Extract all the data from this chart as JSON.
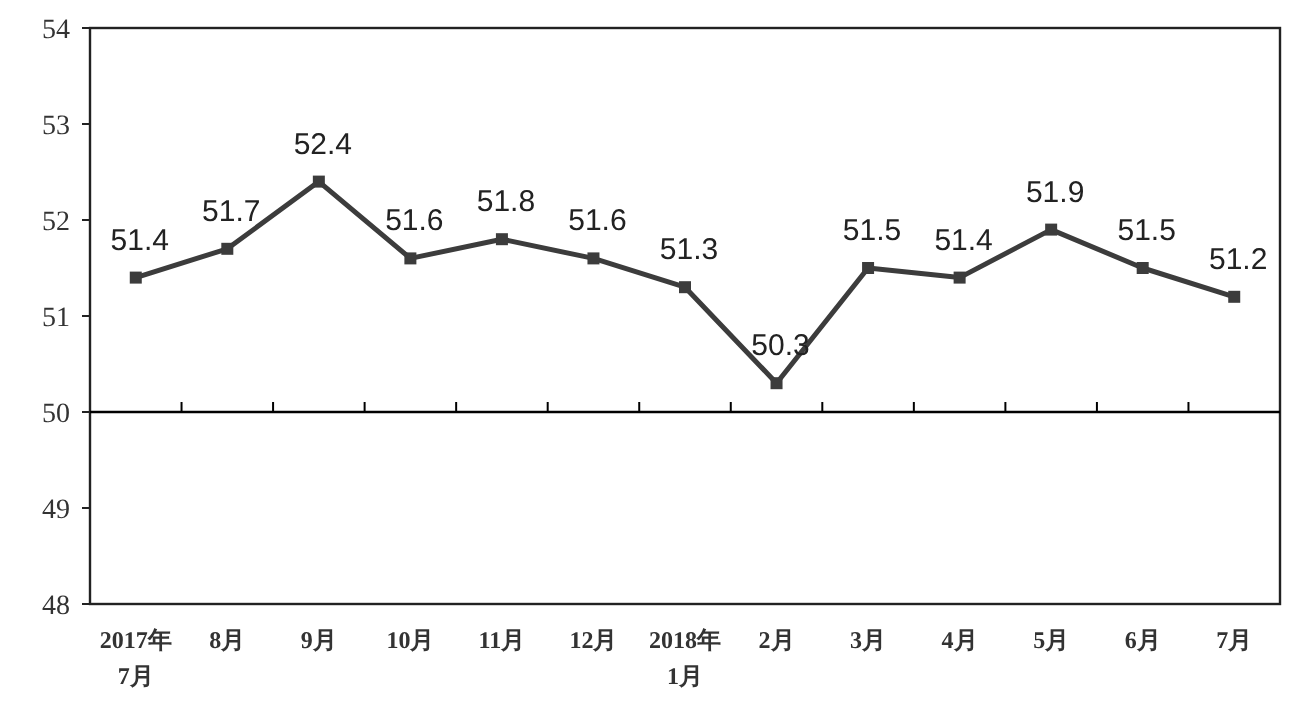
{
  "chart_data": {
    "type": "line",
    "categories": [
      "2017年\n7月",
      "8月",
      "9月",
      "10月",
      "11月",
      "12月",
      "2018年\n1月",
      "2月",
      "3月",
      "4月",
      "5月",
      "6月",
      "7月"
    ],
    "series": [
      {
        "color": "#3c3c3c",
        "values": [
          51.4,
          51.7,
          52.4,
          51.6,
          51.8,
          51.6,
          51.3,
          50.3,
          51.5,
          51.4,
          51.9,
          51.5,
          51.2
        ]
      }
    ],
    "ylim": [
      48,
      54
    ],
    "yticks": [
      48,
      49,
      50,
      51,
      52,
      53,
      54
    ],
    "ref_lines": [
      {
        "axis": "y",
        "value": 50,
        "color": "#000000"
      }
    ],
    "data_labels": true,
    "marker": "square",
    "line_style": "solid",
    "grid": false
  }
}
